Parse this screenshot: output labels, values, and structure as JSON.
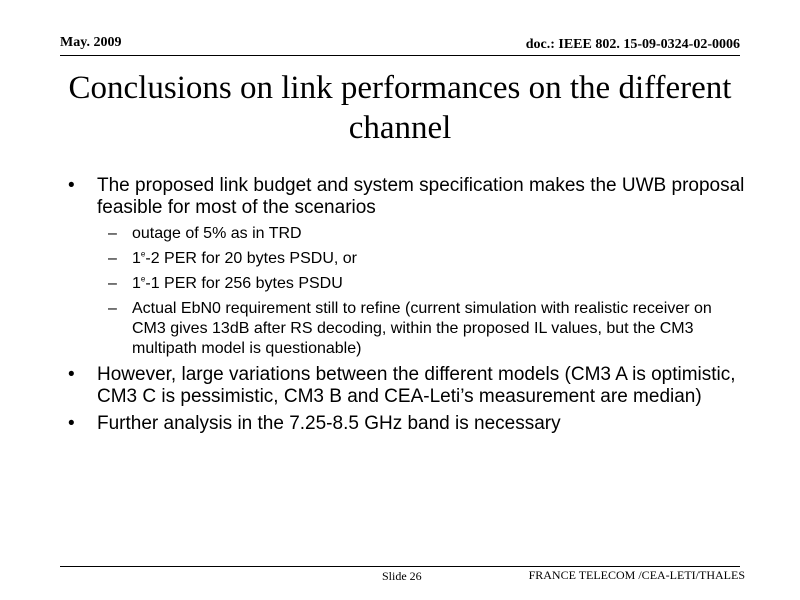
{
  "header": {
    "date": "May. 2009",
    "doc_id": "doc.: IEEE 802. 15-09-0324-02-0006"
  },
  "title": "Conclusions on link performances on the different channel",
  "bullets": {
    "b1": {
      "mark": "•",
      "text": "The proposed link budget and system specification makes the UWB proposal feasible for most of the scenarios"
    },
    "s1": {
      "mark": "–",
      "text": "outage of 5% as in TRD"
    },
    "s2": {
      "mark": "–",
      "pre": "1",
      "sup": "e",
      "post": "-2  PER for 20 bytes PSDU, or"
    },
    "s3": {
      "mark": "–",
      "pre": "1",
      "sup": "e",
      "post": "-1 PER for 256 bytes PSDU"
    },
    "s4": {
      "mark": "–",
      "text": "Actual EbN0 requirement still to refine (current simulation with realistic receiver on CM3 gives 13dB after RS decoding, within the proposed IL values, but the CM3 multipath model is questionable)"
    },
    "b2": {
      "mark": "•",
      "text": "However, large variations between the different models (CM3 A is optimistic, CM3 C is pessimistic, CM3 B and CEA-Leti’s measurement are median)"
    },
    "b3": {
      "mark": "•",
      "text": "Further analysis in the 7.25-8.5 GHz band is necessary"
    }
  },
  "footer": {
    "slide": "Slide 26",
    "affiliation": "FRANCE TELECOM /CEA-LETI/THALES"
  }
}
